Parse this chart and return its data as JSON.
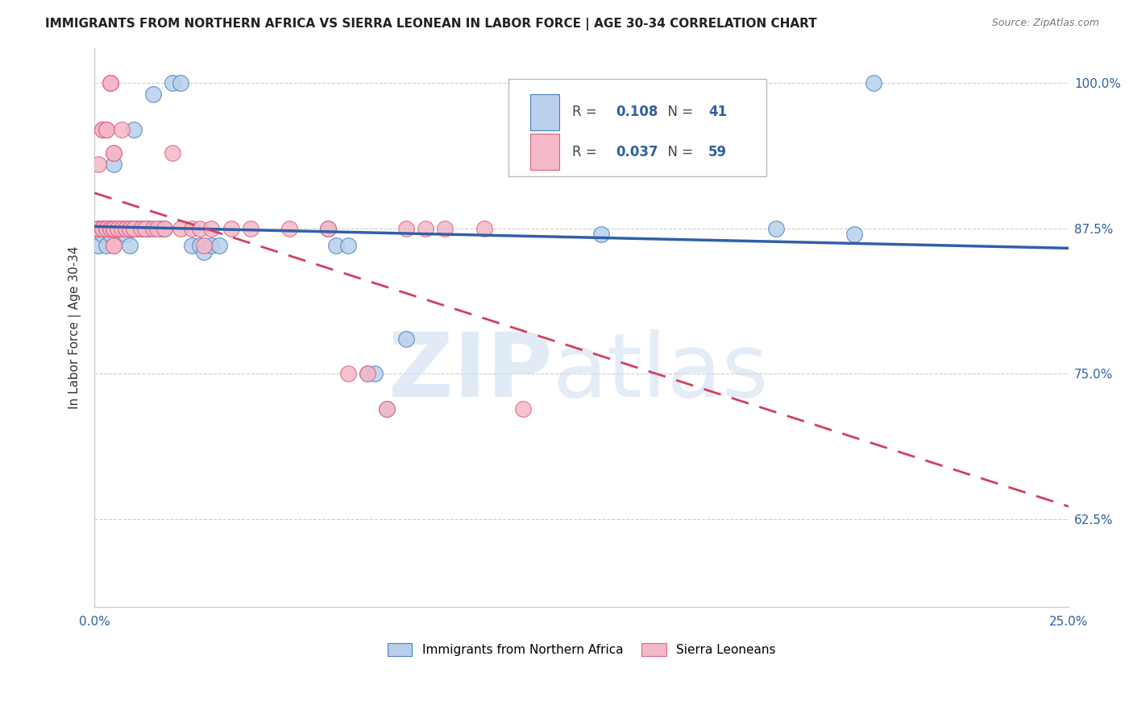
{
  "title": "IMMIGRANTS FROM NORTHERN AFRICA VS SIERRA LEONEAN IN LABOR FORCE | AGE 30-34 CORRELATION CHART",
  "source": "Source: ZipAtlas.com",
  "ylabel": "In Labor Force | Age 30-34",
  "xlim": [
    0.0,
    0.25
  ],
  "ylim": [
    0.55,
    1.03
  ],
  "xticks": [
    0.0,
    0.05,
    0.1,
    0.15,
    0.2,
    0.25
  ],
  "xticklabels": [
    "0.0%",
    "",
    "",
    "",
    "",
    "25.0%"
  ],
  "yticks": [
    0.625,
    0.75,
    0.875,
    1.0
  ],
  "yticklabels": [
    "62.5%",
    "75.0%",
    "87.5%",
    "100.0%"
  ],
  "blue_fill_color": "#b8d0eb",
  "blue_edge_color": "#4a80c0",
  "pink_fill_color": "#f4b8c8",
  "pink_edge_color": "#e06080",
  "blue_line_color": "#3060a8",
  "pink_line_color": "#d04060",
  "legend_R_blue": "0.108",
  "legend_N_blue": "41",
  "legend_R_pink": "0.037",
  "legend_N_pink": "59",
  "blue_scatter_x": [
    0.001,
    0.001,
    0.002,
    0.002,
    0.003,
    0.003,
    0.003,
    0.004,
    0.004,
    0.005,
    0.006,
    0.007,
    0.008,
    0.009,
    0.009,
    0.01,
    0.011,
    0.012,
    0.013,
    0.014,
    0.015,
    0.017,
    0.018,
    0.02,
    0.022,
    0.025,
    0.027,
    0.028,
    0.03,
    0.032,
    0.06,
    0.062,
    0.065,
    0.07,
    0.072,
    0.075,
    0.08,
    0.13,
    0.175,
    0.195,
    0.2
  ],
  "blue_scatter_y": [
    0.875,
    0.86,
    0.875,
    0.87,
    0.875,
    0.875,
    0.86,
    0.875,
    0.87,
    0.93,
    0.875,
    0.875,
    0.87,
    0.875,
    0.86,
    0.96,
    0.875,
    0.875,
    0.875,
    0.875,
    0.99,
    0.875,
    0.875,
    1.0,
    1.0,
    0.86,
    0.86,
    0.855,
    0.86,
    0.86,
    0.875,
    0.86,
    0.86,
    0.75,
    0.75,
    0.72,
    0.78,
    0.87,
    0.875,
    0.87,
    1.0
  ],
  "pink_scatter_x": [
    0.001,
    0.001,
    0.001,
    0.001,
    0.002,
    0.002,
    0.002,
    0.002,
    0.002,
    0.003,
    0.003,
    0.003,
    0.003,
    0.004,
    0.004,
    0.004,
    0.004,
    0.004,
    0.005,
    0.005,
    0.005,
    0.005,
    0.005,
    0.005,
    0.005,
    0.005,
    0.006,
    0.006,
    0.007,
    0.007,
    0.008,
    0.008,
    0.009,
    0.009,
    0.01,
    0.01,
    0.012,
    0.013,
    0.015,
    0.016,
    0.018,
    0.02,
    0.022,
    0.025,
    0.027,
    0.028,
    0.03,
    0.035,
    0.04,
    0.05,
    0.06,
    0.065,
    0.07,
    0.075,
    0.08,
    0.085,
    0.09,
    0.1,
    0.11
  ],
  "pink_scatter_y": [
    0.875,
    0.93,
    0.875,
    0.875,
    0.96,
    0.96,
    0.875,
    0.875,
    0.875,
    0.96,
    0.96,
    0.875,
    0.875,
    1.0,
    1.0,
    1.0,
    0.875,
    0.875,
    0.875,
    0.875,
    0.94,
    0.94,
    0.875,
    0.875,
    0.86,
    0.86,
    0.875,
    0.875,
    0.96,
    0.875,
    0.875,
    0.875,
    0.875,
    0.875,
    0.875,
    0.875,
    0.875,
    0.875,
    0.875,
    0.875,
    0.875,
    0.94,
    0.875,
    0.875,
    0.875,
    0.86,
    0.875,
    0.875,
    0.875,
    0.875,
    0.875,
    0.75,
    0.75,
    0.72,
    0.875,
    0.875,
    0.875,
    0.875,
    0.72
  ]
}
